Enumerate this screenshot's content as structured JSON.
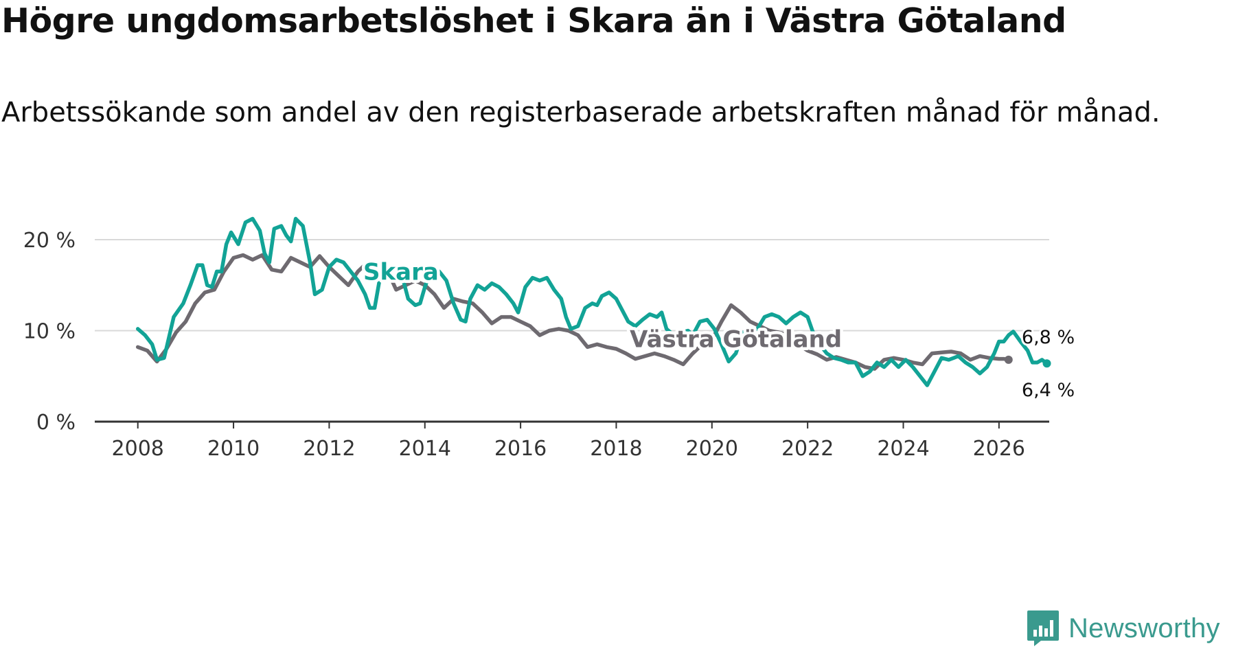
{
  "title": "Högre ungdomsarbetslöshet i Skara än i Västra Götaland",
  "subtitle": "Arbetssökande som andel av den registerbaserade arbetskraften månad för månad.",
  "brand": {
    "name": "Newsworthy",
    "icon": "newsworthy-logo-icon",
    "color": "#3a9a8e"
  },
  "colors": {
    "skara": "#12a396",
    "vastra_gotaland": "#6e6a70",
    "grid": "#d9d9d9",
    "axis": "#333333"
  },
  "chart_data": {
    "type": "line",
    "title": "Högre ungdomsarbetslöshet i Skara än i Västra Götaland",
    "xlabel": "",
    "ylabel": "",
    "xlim": [
      2007.1,
      2027.05
    ],
    "ylim": [
      0,
      20
    ],
    "x_ticks": [
      2008,
      2010,
      2012,
      2014,
      2016,
      2018,
      2020,
      2022,
      2024,
      2026
    ],
    "x_tick_labels": [
      "2008",
      "2010",
      "2012",
      "2014",
      "2016",
      "2018",
      "2020",
      "2022",
      "2024",
      "2026"
    ],
    "y_ticks": [
      0,
      10,
      20
    ],
    "y_tick_labels": [
      "0 %",
      "10 %",
      "20 %"
    ],
    "grid": "horizontal",
    "series": [
      {
        "name": "Västra Götaland",
        "label": "Västra Götaland",
        "end_label": "6,8 %",
        "points": [
          [
            2008.0,
            8.2
          ],
          [
            2008.2,
            7.8
          ],
          [
            2008.4,
            6.6
          ],
          [
            2008.6,
            8.0
          ],
          [
            2008.8,
            9.8
          ],
          [
            2009.0,
            11.0
          ],
          [
            2009.2,
            13.0
          ],
          [
            2009.4,
            14.2
          ],
          [
            2009.6,
            14.5
          ],
          [
            2009.8,
            16.5
          ],
          [
            2010.0,
            18.0
          ],
          [
            2010.2,
            18.3
          ],
          [
            2010.4,
            17.8
          ],
          [
            2010.6,
            18.3
          ],
          [
            2010.8,
            16.7
          ],
          [
            2011.0,
            16.5
          ],
          [
            2011.2,
            18.0
          ],
          [
            2011.4,
            17.5
          ],
          [
            2011.6,
            17.0
          ],
          [
            2011.8,
            18.2
          ],
          [
            2012.0,
            17.0
          ],
          [
            2012.2,
            16.0
          ],
          [
            2012.4,
            15.0
          ],
          [
            2012.6,
            16.5
          ],
          [
            2012.8,
            17.5
          ],
          [
            2013.0,
            17.5
          ],
          [
            2013.2,
            16.8
          ],
          [
            2013.4,
            14.5
          ],
          [
            2013.6,
            15.0
          ],
          [
            2013.8,
            15.5
          ],
          [
            2014.0,
            15.0
          ],
          [
            2014.2,
            14.0
          ],
          [
            2014.4,
            12.5
          ],
          [
            2014.6,
            13.5
          ],
          [
            2014.8,
            13.2
          ],
          [
            2015.0,
            13.0
          ],
          [
            2015.2,
            12.0
          ],
          [
            2015.4,
            10.8
          ],
          [
            2015.6,
            11.5
          ],
          [
            2015.8,
            11.5
          ],
          [
            2016.0,
            11.0
          ],
          [
            2016.2,
            10.5
          ],
          [
            2016.4,
            9.5
          ],
          [
            2016.6,
            10.0
          ],
          [
            2016.8,
            10.2
          ],
          [
            2017.0,
            10.0
          ],
          [
            2017.2,
            9.5
          ],
          [
            2017.4,
            8.2
          ],
          [
            2017.6,
            8.5
          ],
          [
            2017.8,
            8.2
          ],
          [
            2018.0,
            8.0
          ],
          [
            2018.2,
            7.5
          ],
          [
            2018.4,
            6.9
          ],
          [
            2018.6,
            7.2
          ],
          [
            2018.8,
            7.5
          ],
          [
            2019.0,
            7.2
          ],
          [
            2019.2,
            6.8
          ],
          [
            2019.4,
            6.3
          ],
          [
            2019.6,
            7.5
          ],
          [
            2019.8,
            8.5
          ],
          [
            2020.0,
            9.0
          ],
          [
            2020.2,
            11.0
          ],
          [
            2020.4,
            12.8
          ],
          [
            2020.6,
            12.0
          ],
          [
            2020.8,
            11.0
          ],
          [
            2021.0,
            10.5
          ],
          [
            2021.2,
            10.0
          ],
          [
            2021.4,
            9.8
          ],
          [
            2021.6,
            9.5
          ],
          [
            2021.8,
            8.5
          ],
          [
            2022.0,
            7.8
          ],
          [
            2022.2,
            7.4
          ],
          [
            2022.4,
            6.8
          ],
          [
            2022.6,
            7.1
          ],
          [
            2022.8,
            6.8
          ],
          [
            2023.0,
            6.5
          ],
          [
            2023.2,
            6.0
          ],
          [
            2023.4,
            5.8
          ],
          [
            2023.6,
            6.8
          ],
          [
            2023.8,
            7.0
          ],
          [
            2024.0,
            6.8
          ],
          [
            2024.2,
            6.5
          ],
          [
            2024.4,
            6.3
          ],
          [
            2024.6,
            7.5
          ],
          [
            2024.8,
            7.6
          ],
          [
            2025.0,
            7.7
          ],
          [
            2025.2,
            7.5
          ],
          [
            2025.4,
            6.8
          ],
          [
            2025.6,
            7.2
          ],
          [
            2025.8,
            7.0
          ],
          [
            2026.0,
            6.9
          ],
          [
            2026.1,
            6.9
          ],
          [
            2026.2,
            6.8
          ]
        ]
      },
      {
        "name": "Skara",
        "label": "Skara",
        "end_label": "6,4 %",
        "points": [
          [
            2008.0,
            10.2
          ],
          [
            2008.15,
            9.5
          ],
          [
            2008.3,
            8.5
          ],
          [
            2008.4,
            6.8
          ],
          [
            2008.55,
            7.0
          ],
          [
            2008.75,
            11.5
          ],
          [
            2008.95,
            13.0
          ],
          [
            2009.1,
            15.0
          ],
          [
            2009.25,
            17.2
          ],
          [
            2009.35,
            17.2
          ],
          [
            2009.45,
            15.0
          ],
          [
            2009.55,
            14.8
          ],
          [
            2009.65,
            16.5
          ],
          [
            2009.75,
            16.5
          ],
          [
            2009.85,
            19.5
          ],
          [
            2009.95,
            20.8
          ],
          [
            2010.1,
            19.5
          ],
          [
            2010.25,
            21.9
          ],
          [
            2010.4,
            22.3
          ],
          [
            2010.55,
            21.0
          ],
          [
            2010.65,
            18.5
          ],
          [
            2010.75,
            17.5
          ],
          [
            2010.85,
            21.2
          ],
          [
            2011.0,
            21.5
          ],
          [
            2011.1,
            20.5
          ],
          [
            2011.2,
            19.8
          ],
          [
            2011.3,
            22.3
          ],
          [
            2011.45,
            21.5
          ],
          [
            2011.6,
            17.5
          ],
          [
            2011.7,
            14.0
          ],
          [
            2011.85,
            14.5
          ],
          [
            2012.0,
            17.0
          ],
          [
            2012.15,
            17.8
          ],
          [
            2012.3,
            17.5
          ],
          [
            2012.45,
            16.5
          ],
          [
            2012.6,
            15.5
          ],
          [
            2012.75,
            14.0
          ],
          [
            2012.85,
            12.5
          ],
          [
            2012.95,
            12.5
          ],
          [
            2013.05,
            15.5
          ],
          [
            2013.2,
            16.5
          ],
          [
            2013.35,
            16.0
          ],
          [
            2013.5,
            16.5
          ],
          [
            2013.65,
            13.5
          ],
          [
            2013.8,
            12.8
          ],
          [
            2013.9,
            13.0
          ],
          [
            2014.0,
            14.8
          ],
          [
            2014.15,
            17.0
          ],
          [
            2014.3,
            16.5
          ],
          [
            2014.45,
            15.5
          ],
          [
            2014.6,
            13.0
          ],
          [
            2014.75,
            11.2
          ],
          [
            2014.85,
            11.0
          ],
          [
            2014.95,
            13.5
          ],
          [
            2015.1,
            15.0
          ],
          [
            2015.25,
            14.5
          ],
          [
            2015.4,
            15.2
          ],
          [
            2015.55,
            14.8
          ],
          [
            2015.7,
            14.0
          ],
          [
            2015.85,
            13.0
          ],
          [
            2015.95,
            12.0
          ],
          [
            2016.1,
            14.8
          ],
          [
            2016.25,
            15.8
          ],
          [
            2016.4,
            15.5
          ],
          [
            2016.55,
            15.8
          ],
          [
            2016.7,
            14.5
          ],
          [
            2016.85,
            13.5
          ],
          [
            2016.95,
            11.5
          ],
          [
            2017.05,
            10.2
          ],
          [
            2017.2,
            10.5
          ],
          [
            2017.35,
            12.5
          ],
          [
            2017.5,
            13.0
          ],
          [
            2017.6,
            12.8
          ],
          [
            2017.7,
            13.8
          ],
          [
            2017.85,
            14.2
          ],
          [
            2018.0,
            13.5
          ],
          [
            2018.1,
            12.5
          ],
          [
            2018.25,
            11.0
          ],
          [
            2018.4,
            10.5
          ],
          [
            2018.55,
            11.2
          ],
          [
            2018.7,
            11.8
          ],
          [
            2018.85,
            11.5
          ],
          [
            2018.95,
            12.0
          ],
          [
            2019.05,
            10.2
          ],
          [
            2019.2,
            9.5
          ],
          [
            2019.35,
            9.8
          ],
          [
            2019.5,
            10.0
          ],
          [
            2019.6,
            9.5
          ],
          [
            2019.75,
            11.0
          ],
          [
            2019.9,
            11.2
          ],
          [
            2020.05,
            10.2
          ],
          [
            2020.2,
            8.5
          ],
          [
            2020.35,
            6.6
          ],
          [
            2020.5,
            7.5
          ],
          [
            2020.65,
            9.8
          ],
          [
            2020.8,
            10.0
          ],
          [
            2020.95,
            10.2
          ],
          [
            2021.1,
            11.5
          ],
          [
            2021.25,
            11.8
          ],
          [
            2021.4,
            11.5
          ],
          [
            2021.55,
            10.8
          ],
          [
            2021.7,
            11.5
          ],
          [
            2021.85,
            12.0
          ],
          [
            2022.0,
            11.5
          ],
          [
            2022.1,
            10.0
          ],
          [
            2022.25,
            8.5
          ],
          [
            2022.4,
            7.5
          ],
          [
            2022.55,
            7.0
          ],
          [
            2022.7,
            6.8
          ],
          [
            2022.85,
            6.5
          ],
          [
            2023.0,
            6.5
          ],
          [
            2023.15,
            5.0
          ],
          [
            2023.3,
            5.5
          ],
          [
            2023.45,
            6.5
          ],
          [
            2023.6,
            6.0
          ],
          [
            2023.75,
            6.8
          ],
          [
            2023.9,
            6.0
          ],
          [
            2024.05,
            6.8
          ],
          [
            2024.2,
            6.0
          ],
          [
            2024.35,
            5.0
          ],
          [
            2024.5,
            4.0
          ],
          [
            2024.65,
            5.5
          ],
          [
            2024.8,
            7.0
          ],
          [
            2024.95,
            6.8
          ],
          [
            2025.05,
            7.0
          ],
          [
            2025.15,
            7.2
          ],
          [
            2025.3,
            6.5
          ],
          [
            2025.45,
            6.0
          ],
          [
            2025.6,
            5.3
          ],
          [
            2025.75,
            6.0
          ],
          [
            2025.9,
            7.5
          ],
          [
            2026.0,
            8.8
          ],
          [
            2026.1,
            8.8
          ],
          [
            2026.2,
            9.5
          ],
          [
            2026.3,
            9.9
          ],
          [
            2026.45,
            8.8
          ],
          [
            2026.6,
            7.8
          ],
          [
            2026.7,
            6.5
          ],
          [
            2026.8,
            6.5
          ],
          [
            2026.9,
            6.8
          ],
          [
            2027.0,
            6.4
          ]
        ]
      }
    ]
  }
}
